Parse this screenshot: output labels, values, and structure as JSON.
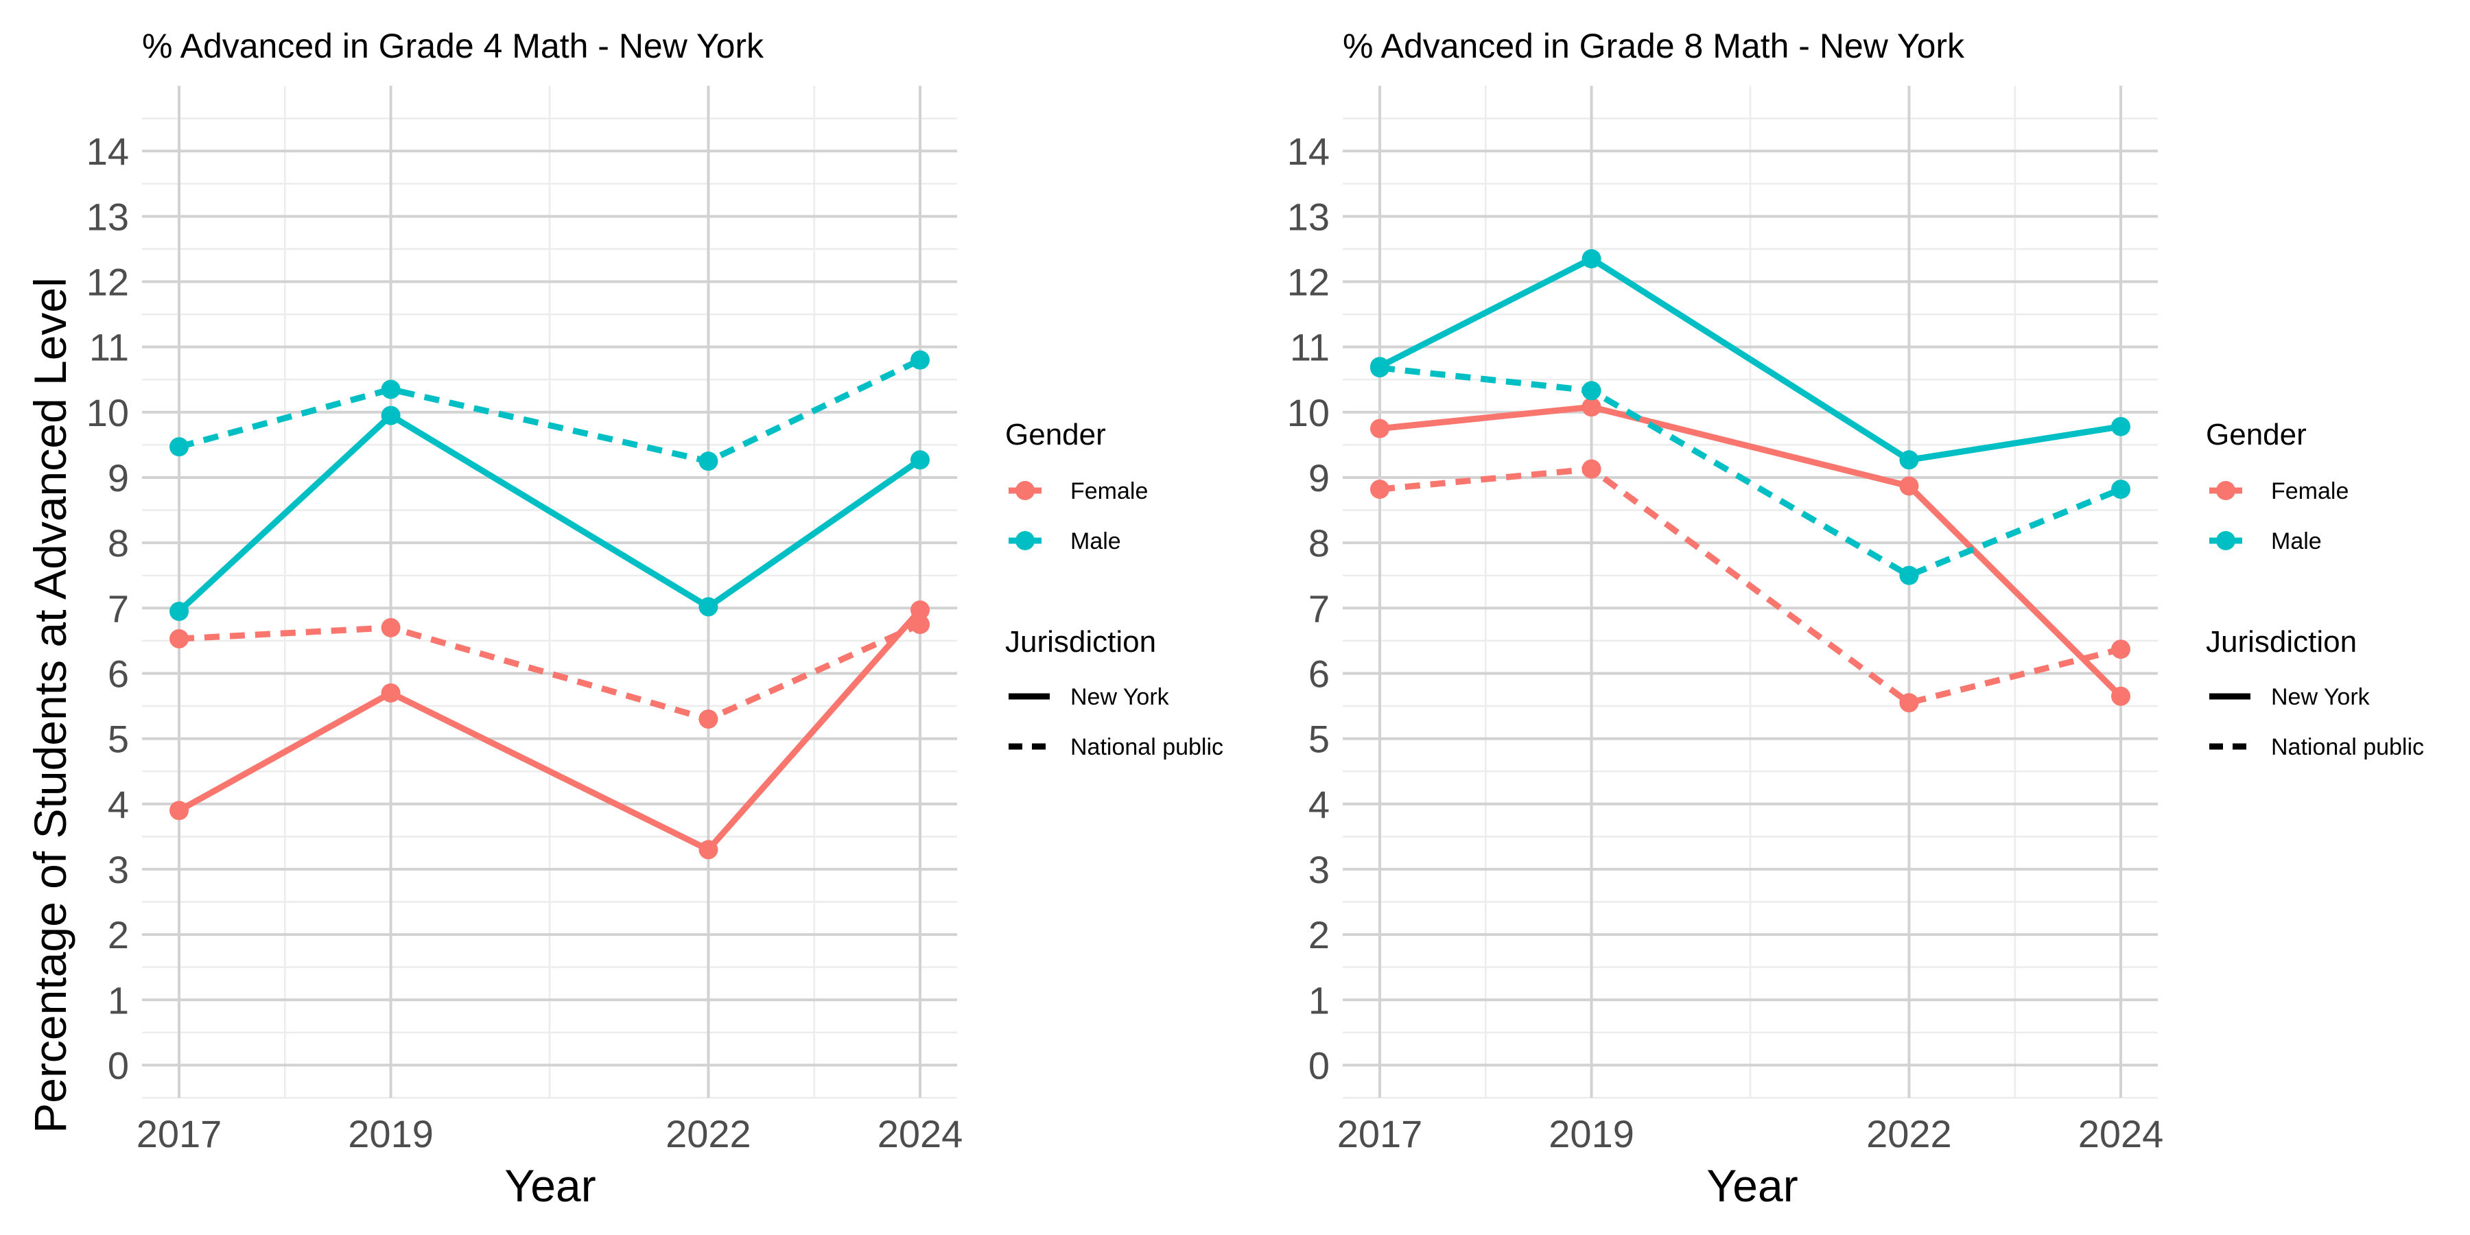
{
  "chart_data": [
    {
      "type": "line",
      "title": "% Advanced in Grade 4 Math - New York",
      "xlabel": "Year",
      "ylabel": "Percentage of Students at Advanced Level",
      "x": [
        2017,
        2019,
        2022,
        2024
      ],
      "x_ticks": [
        "2017",
        "2019",
        "2022",
        "2024"
      ],
      "y_ticks": [
        "0",
        "1",
        "2",
        "3",
        "4",
        "5",
        "6",
        "7",
        "8",
        "9",
        "10",
        "11",
        "12",
        "13",
        "14"
      ],
      "ylim": [
        -0.5,
        15.0
      ],
      "grid": true,
      "series": [
        {
          "gender": "Female",
          "jurisdiction": "New York",
          "values": [
            3.9,
            5.7,
            3.3,
            6.97
          ]
        },
        {
          "gender": "Female",
          "jurisdiction": "National public",
          "values": [
            6.53,
            6.7,
            5.3,
            6.75
          ]
        },
        {
          "gender": "Male",
          "jurisdiction": "New York",
          "values": [
            6.95,
            9.95,
            7.02,
            9.27
          ]
        },
        {
          "gender": "Male",
          "jurisdiction": "National public",
          "values": [
            9.47,
            10.35,
            9.25,
            10.8
          ]
        }
      ]
    },
    {
      "type": "line",
      "title": "% Advanced in Grade 8 Math - New York",
      "xlabel": "Year",
      "ylabel": "",
      "x": [
        2017,
        2019,
        2022,
        2024
      ],
      "x_ticks": [
        "2017",
        "2019",
        "2022",
        "2024"
      ],
      "y_ticks": [
        "0",
        "1",
        "2",
        "3",
        "4",
        "5",
        "6",
        "7",
        "8",
        "9",
        "10",
        "11",
        "12",
        "13",
        "14"
      ],
      "ylim": [
        -0.5,
        15.0
      ],
      "grid": true,
      "series": [
        {
          "gender": "Female",
          "jurisdiction": "New York",
          "values": [
            9.75,
            10.08,
            8.87,
            5.65
          ]
        },
        {
          "gender": "Female",
          "jurisdiction": "National public",
          "values": [
            8.82,
            9.13,
            5.55,
            6.37
          ]
        },
        {
          "gender": "Male",
          "jurisdiction": "New York",
          "values": [
            10.7,
            12.35,
            9.27,
            9.78
          ]
        },
        {
          "gender": "Male",
          "jurisdiction": "National public",
          "values": [
            10.68,
            10.33,
            7.5,
            8.82
          ]
        }
      ]
    }
  ],
  "legend": {
    "position": "right",
    "gender_title": "Gender",
    "gender_items": [
      {
        "label": "Female",
        "color": "#F8766D"
      },
      {
        "label": "Male",
        "color": "#00BFC4"
      }
    ],
    "jurisdiction_title": "Jurisdiction",
    "jurisdiction_items": [
      {
        "label": "New York",
        "linetype": "solid"
      },
      {
        "label": "National public",
        "linetype": "dashed"
      }
    ]
  },
  "colors": {
    "female": "#F8766D",
    "male": "#00BFC4",
    "grid_major": "#d2d2d2",
    "grid_minor": "#ececec"
  }
}
